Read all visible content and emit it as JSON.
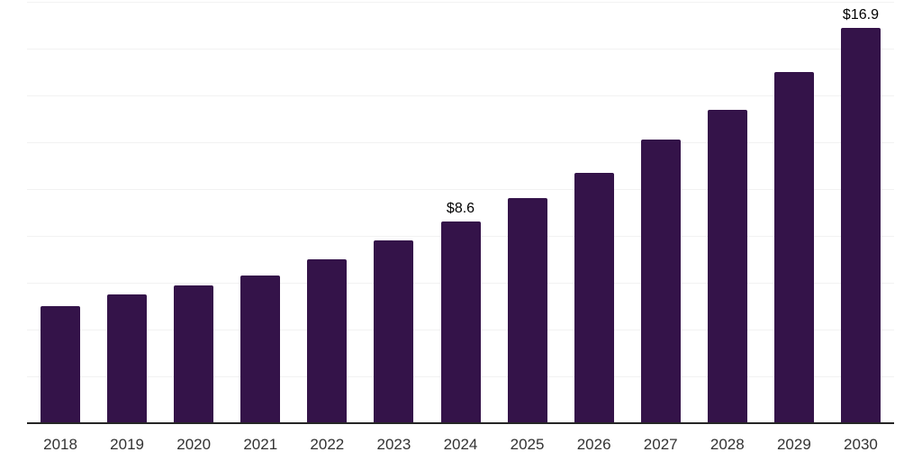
{
  "chart_data": {
    "type": "bar",
    "title": "",
    "xlabel": "",
    "ylabel": "",
    "categories": [
      "2018",
      "2019",
      "2020",
      "2021",
      "2022",
      "2023",
      "2024",
      "2025",
      "2026",
      "2027",
      "2028",
      "2029",
      "2030"
    ],
    "values": [
      5.0,
      5.5,
      5.9,
      6.3,
      7.0,
      7.8,
      8.6,
      9.6,
      10.7,
      12.1,
      13.4,
      15.0,
      16.9
    ],
    "annotations": [
      {
        "category": "2024",
        "label": "$8.6"
      },
      {
        "category": "2030",
        "label": "$16.9"
      }
    ],
    "ylim": [
      0,
      18
    ],
    "gridline_step": 2,
    "grid": true,
    "legend": false,
    "y_axis_labels_visible": false,
    "colors": {
      "bar": "#341349",
      "gridline": "#f2f2f2",
      "axis": "#262626",
      "tick_label": "#333333",
      "annotation": "#000000",
      "background": "#ffffff"
    }
  }
}
